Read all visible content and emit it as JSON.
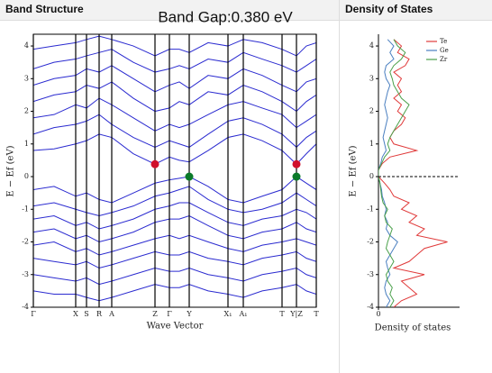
{
  "header": {
    "left": "Band Structure",
    "right": "Density of States"
  },
  "chart_data": [
    {
      "type": "line",
      "title": "Band Gap:0.380 eV",
      "x_label": "Wave Vector",
      "y_label": "E − Ef (eV)",
      "color": "#2b2bd0",
      "x": [
        0,
        23,
        47,
        59,
        73,
        87,
        111,
        135,
        151,
        162,
        173,
        194,
        216,
        233,
        254,
        276,
        292,
        303,
        314
      ],
      "xlim": [
        0,
        314
      ],
      "xticks": [
        {
          "value": 0,
          "label": "Γ"
        },
        {
          "value": 47,
          "label": "X"
        },
        {
          "value": 59,
          "label": "S"
        },
        {
          "value": 73,
          "label": "R"
        },
        {
          "value": 87,
          "label": "A"
        },
        {
          "value": 135,
          "label": "Z"
        },
        {
          "value": 151,
          "label": "Γ"
        },
        {
          "value": 173,
          "label": "Y"
        },
        {
          "value": 216,
          "label": "X₁"
        },
        {
          "value": 233,
          "label": "A₁"
        },
        {
          "value": 276,
          "label": "T"
        },
        {
          "value": 292,
          "label": "Y|Z"
        },
        {
          "value": 314,
          "label": "T"
        }
      ],
      "ylim": [
        -4,
        4.36
      ],
      "yticks": [
        -4,
        -3,
        -2,
        -1,
        0,
        1,
        2,
        3,
        4
      ],
      "series": [
        {
          "values": [
            0.8,
            0.85,
            1.0,
            1.1,
            1.3,
            1.2,
            0.7,
            0.38,
            0.6,
            0.5,
            0.45,
            0.8,
            1.2,
            1.3,
            1.1,
            0.8,
            0.38,
            0.7,
            1.0
          ]
        },
        {
          "values": [
            1.3,
            1.5,
            1.6,
            1.7,
            1.9,
            1.6,
            1.2,
            0.9,
            1.1,
            1.0,
            0.9,
            1.3,
            1.7,
            1.8,
            1.6,
            1.3,
            0.9,
            1.2,
            1.4
          ]
        },
        {
          "values": [
            1.8,
            1.9,
            2.2,
            2.1,
            2.4,
            2.2,
            1.8,
            1.4,
            1.6,
            1.5,
            1.6,
            1.9,
            2.2,
            2.3,
            2.1,
            1.9,
            1.5,
            1.7,
            1.9
          ]
        },
        {
          "values": [
            2.3,
            2.5,
            2.6,
            2.8,
            2.7,
            2.9,
            2.4,
            2.0,
            2.1,
            2.3,
            2.2,
            2.6,
            2.5,
            2.8,
            2.6,
            2.3,
            2.0,
            2.3,
            2.5
          ]
        },
        {
          "values": [
            2.8,
            3.0,
            3.1,
            3.3,
            3.2,
            3.4,
            3.0,
            2.6,
            2.8,
            2.9,
            2.7,
            3.1,
            3.0,
            3.3,
            3.1,
            2.8,
            2.6,
            2.9,
            3.0
          ]
        },
        {
          "values": [
            3.3,
            3.5,
            3.6,
            3.7,
            3.8,
            3.9,
            3.5,
            3.2,
            3.3,
            3.4,
            3.3,
            3.6,
            3.5,
            3.8,
            3.6,
            3.4,
            3.2,
            3.4,
            3.6
          ]
        },
        {
          "values": [
            3.9,
            4.0,
            4.1,
            4.2,
            4.3,
            4.2,
            4.0,
            3.7,
            3.9,
            3.9,
            3.8,
            4.1,
            4.0,
            4.2,
            4.1,
            3.9,
            3.7,
            4.0,
            4.1
          ]
        },
        {
          "values": [
            -0.4,
            -0.3,
            -0.6,
            -0.5,
            -0.7,
            -0.8,
            -0.5,
            -0.2,
            -0.1,
            -0.05,
            0,
            -0.3,
            -0.7,
            -0.8,
            -0.6,
            -0.4,
            0,
            -0.2,
            -0.4
          ]
        },
        {
          "values": [
            -0.9,
            -0.8,
            -1.0,
            -1.1,
            -1.2,
            -1.1,
            -0.9,
            -0.6,
            -0.5,
            -0.4,
            -0.3,
            -0.7,
            -1.0,
            -1.1,
            -1.0,
            -0.8,
            -0.5,
            -0.7,
            -0.9
          ]
        },
        {
          "values": [
            -1.3,
            -1.2,
            -1.5,
            -1.4,
            -1.6,
            -1.5,
            -1.3,
            -1.0,
            -0.9,
            -0.8,
            -0.8,
            -1.1,
            -1.4,
            -1.5,
            -1.3,
            -1.2,
            -1.0,
            -1.1,
            -1.3
          ]
        },
        {
          "values": [
            -1.7,
            -1.6,
            -1.9,
            -1.8,
            -2.0,
            -1.9,
            -1.7,
            -1.4,
            -1.3,
            -1.3,
            -1.2,
            -1.5,
            -1.8,
            -1.9,
            -1.7,
            -1.6,
            -1.4,
            -1.6,
            -1.7
          ]
        },
        {
          "values": [
            -2.1,
            -2.0,
            -2.3,
            -2.2,
            -2.4,
            -2.3,
            -2.1,
            -1.9,
            -1.8,
            -1.9,
            -1.8,
            -2.0,
            -2.2,
            -2.3,
            -2.1,
            -2.0,
            -1.9,
            -2.0,
            -2.1
          ]
        },
        {
          "values": [
            -2.5,
            -2.6,
            -2.7,
            -2.6,
            -2.8,
            -2.7,
            -2.5,
            -2.3,
            -2.4,
            -2.4,
            -2.3,
            -2.5,
            -2.6,
            -2.7,
            -2.5,
            -2.4,
            -2.3,
            -2.5,
            -2.6
          ]
        },
        {
          "values": [
            -3.0,
            -3.1,
            -3.2,
            -3.1,
            -3.3,
            -3.2,
            -3.0,
            -2.8,
            -2.9,
            -2.9,
            -2.8,
            -3.0,
            -3.1,
            -3.2,
            -3.0,
            -2.9,
            -2.8,
            -3.0,
            -3.1
          ]
        },
        {
          "values": [
            -3.5,
            -3.6,
            -3.6,
            -3.7,
            -3.8,
            -3.7,
            -3.5,
            -3.3,
            -3.4,
            -3.4,
            -3.3,
            -3.5,
            -3.6,
            -3.7,
            -3.5,
            -3.4,
            -3.3,
            -3.5,
            -3.6
          ]
        }
      ],
      "points": [
        {
          "x": 135,
          "y": 0.38,
          "color": "#d0102c"
        },
        {
          "x": 292,
          "y": 0.38,
          "color": "#d0102c"
        },
        {
          "x": 173,
          "y": 0,
          "color": "#0b7a2a"
        },
        {
          "x": 292,
          "y": 0,
          "color": "#0b7a2a"
        }
      ]
    },
    {
      "type": "line",
      "orientation": "horizontal",
      "x_label": "Density of states",
      "y_label": "E − Ef (eV)",
      "fermi_level": 0,
      "y": [
        -4,
        -3.8,
        -3.6,
        -3.4,
        -3.2,
        -3,
        -2.8,
        -2.6,
        -2.4,
        -2.2,
        -2,
        -1.8,
        -1.6,
        -1.4,
        -1.2,
        -1,
        -0.8,
        -0.6,
        -0.4,
        -0.2,
        0,
        0.2,
        0.4,
        0.6,
        0.8,
        1,
        1.2,
        1.4,
        1.6,
        1.8,
        2,
        2.2,
        2.4,
        2.6,
        2.8,
        3,
        3.2,
        3.4,
        3.6,
        3.8,
        4,
        4.2
      ],
      "ylim": [
        -4,
        4.36
      ],
      "yticks": [
        -4,
        -3,
        -2,
        -1,
        0,
        1,
        2,
        3,
        4
      ],
      "xlim": [
        0,
        10
      ],
      "xticks": [
        0
      ],
      "series": [
        {
          "name": "Te",
          "color": "#e03a3a",
          "values": [
            2,
            3,
            5,
            4,
            3,
            6,
            2,
            4,
            5,
            6,
            9,
            5,
            6,
            4,
            5,
            3,
            4,
            2,
            1.5,
            0.8,
            0,
            0,
            0.5,
            1.5,
            5,
            2,
            1.5,
            2,
            3,
            3.5,
            2.5,
            3,
            2,
            3,
            2.5,
            3,
            2,
            3.5,
            4,
            2.5,
            3,
            2
          ]
        },
        {
          "name": "Ge",
          "color": "#4a7fc0",
          "values": [
            1,
            1.5,
            1,
            0.8,
            1,
            1.5,
            1.2,
            1,
            1.5,
            2,
            2.5,
            1.5,
            1,
            1.2,
            0.8,
            1,
            0.8,
            0.5,
            0.4,
            0.2,
            0,
            0,
            0.3,
            0.5,
            1,
            0.8,
            0.6,
            0.8,
            1,
            1.2,
            1,
            0.8,
            1,
            1.2,
            1.5,
            1,
            0.8,
            1,
            2,
            1.5,
            2,
            1.2
          ]
        },
        {
          "name": "Zr",
          "color": "#4aa04a",
          "values": [
            1.5,
            2,
            1.5,
            1.8,
            1.2,
            1,
            1.5,
            2,
            1.5,
            1,
            1.2,
            1.5,
            1.8,
            1,
            0.8,
            1.2,
            0.6,
            0.4,
            0.3,
            0.2,
            0,
            0,
            0.4,
            0.8,
            1.5,
            1.2,
            1.5,
            2,
            2.5,
            3,
            3.5,
            4,
            3,
            2.5,
            2,
            1.8,
            1.5,
            2,
            3,
            3.5,
            2.5,
            2
          ]
        }
      ],
      "legend": "upper right"
    }
  ]
}
